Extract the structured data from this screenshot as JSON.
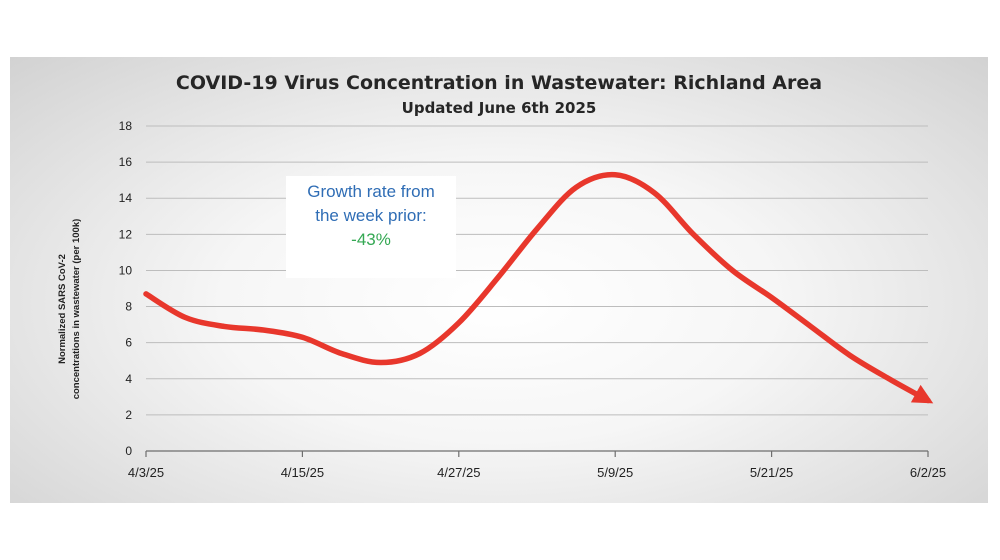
{
  "chart_data": {
    "type": "line",
    "title": "COVID-19 Virus Concentration in Wastewater: Richland Area",
    "subtitle": "Updated June 6th 2025",
    "ylabel_lines": [
      "Normalized SARS CoV-2",
      "concentrations in wastewater (per 100k)"
    ],
    "xlabel": "",
    "ylim": [
      0,
      18
    ],
    "y_ticks": [
      0,
      2,
      4,
      6,
      8,
      10,
      12,
      14,
      16,
      18
    ],
    "x_tick_labels": [
      "4/3/25",
      "4/15/25",
      "4/27/25",
      "5/9/25",
      "5/21/25",
      "6/2/25"
    ],
    "xlim": [
      "4/3/25",
      "6/2/25"
    ],
    "grid": true,
    "legend": "none",
    "series": [
      {
        "color": "#e8372c",
        "x": [
          "4/3/25",
          "4/6/25",
          "4/9/25",
          "4/12/25",
          "4/15/25",
          "4/18/25",
          "4/21/25",
          "4/24/25",
          "4/27/25",
          "4/30/25",
          "5/3/25",
          "5/6/25",
          "5/9/25",
          "5/12/25",
          "5/15/25",
          "5/18/25",
          "5/21/25",
          "5/24/25",
          "5/27/25",
          "5/30/25",
          "6/2/25"
        ],
        "values": [
          8.7,
          7.4,
          6.9,
          6.7,
          6.3,
          5.4,
          4.9,
          5.4,
          7.1,
          9.6,
          12.3,
          14.6,
          15.3,
          14.3,
          12.0,
          10.0,
          8.5,
          6.9,
          5.3,
          4.0,
          2.8
        ]
      }
    ],
    "annotation": {
      "line1": "Growth rate from",
      "line2": "the week prior:",
      "value": "-43%",
      "text_color": "#2f6db5",
      "value_color": "#34a853"
    }
  }
}
